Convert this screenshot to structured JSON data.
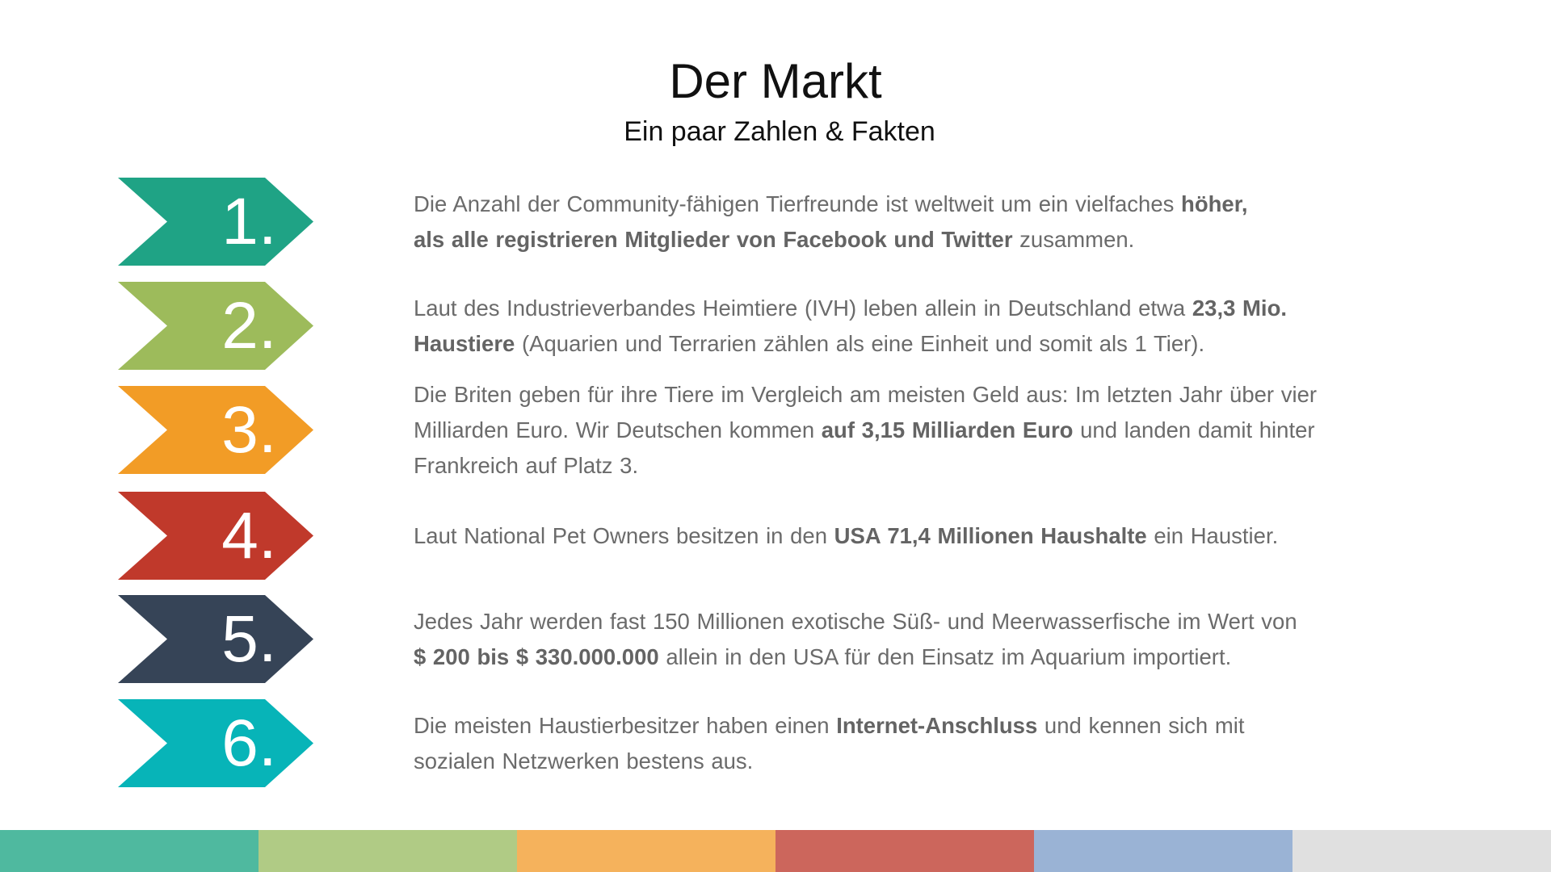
{
  "header": {
    "title": "Der Markt",
    "subtitle": "Ein paar Zahlen & Fakten"
  },
  "rows": [
    {
      "number": "1.",
      "color": "#1fa385",
      "lines": [
        [
          {
            "t": "Die Anzahl der Community-fähigen Tierfreunde ist weltweit um ein vielfaches "
          },
          {
            "t": "höher,",
            "b": true
          }
        ],
        [
          {
            "t": "als alle registrieren Mitglieder von Facebook und Twitter",
            "b": true
          },
          {
            "t": " zusammen."
          }
        ]
      ]
    },
    {
      "number": "2.",
      "color": "#9dbb5b",
      "lines": [
        [
          {
            "t": "Laut des Industrieverbandes Heimtiere (IVH) leben allein in Deutschland etwa "
          },
          {
            "t": "23,3 Mio.",
            "b": true
          }
        ],
        [
          {
            "t": "Haustiere",
            "b": true
          },
          {
            "t": " (Aquarien und Terrarien zählen als eine Einheit und somit als 1 Tier)."
          }
        ]
      ]
    },
    {
      "number": "3.",
      "color": "#f29c26",
      "lines": [
        [
          {
            "t": "Die Briten geben für ihre Tiere im Vergleich am meisten Geld aus: Im letzten Jahr über vier"
          }
        ],
        [
          {
            "t": "Milliarden Euro. Wir Deutschen kommen "
          },
          {
            "t": "auf 3,15 Milliarden Euro",
            "b": true
          },
          {
            "t": " und landen damit hinter"
          }
        ],
        [
          {
            "t": "Frankreich auf Platz 3."
          }
        ]
      ]
    },
    {
      "number": "4.",
      "color": "#c0392b",
      "lines": [
        [
          {
            "t": "Laut National Pet Owners besitzen in den "
          },
          {
            "t": "USA 71,4 Millionen Haushalte",
            "b": true
          },
          {
            "t": " ein Haustier."
          }
        ]
      ]
    },
    {
      "number": "5.",
      "color": "#364457",
      "lines": [
        [
          {
            "t": "Jedes Jahr werden fast 150 Millionen exotische Süß- und Meerwasserfische im Wert von"
          }
        ],
        [
          {
            "t": " $ 200 bis $ 330.000.000",
            "b": true
          },
          {
            "t": " allein in den USA für den Einsatz im Aquarium importiert."
          }
        ]
      ]
    },
    {
      "number": "6.",
      "color": "#07b4b8",
      "lines": [
        [
          {
            "t": "Die meisten Haustierbesitzer haben einen "
          },
          {
            "t": "Internet-Anschluss",
            "b": true
          },
          {
            "t": " und kennen sich mit"
          }
        ],
        [
          {
            "t": "sozialen Netzwerken bestens aus."
          }
        ]
      ]
    }
  ],
  "footer_bar_colors": [
    "#4fb99f",
    "#b0cb85",
    "#f5b25c",
    "#cc665c",
    "#9ab3d5",
    "#e0e0e0"
  ]
}
